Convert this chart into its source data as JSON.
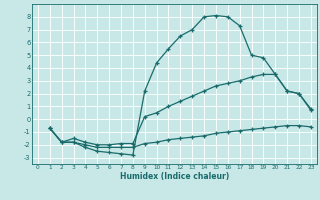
{
  "line1_x": [
    1,
    2,
    3,
    4,
    5,
    6,
    7,
    8,
    9,
    10,
    11,
    12,
    13,
    14,
    15,
    16,
    17,
    18,
    19,
    20,
    21,
    22,
    23
  ],
  "line1_y": [
    -0.7,
    -1.8,
    -1.8,
    -2.2,
    -2.5,
    -2.6,
    -2.7,
    -2.8,
    2.2,
    4.4,
    5.5,
    6.5,
    7.0,
    8.0,
    8.1,
    8.0,
    7.3,
    5.0,
    4.8,
    3.5,
    2.2,
    2.0,
    0.7
  ],
  "line2_x": [
    1,
    2,
    3,
    4,
    5,
    6,
    7,
    8,
    9,
    10,
    11,
    12,
    13,
    14,
    15,
    16,
    17,
    18,
    19,
    20,
    21,
    22,
    23
  ],
  "line2_y": [
    -0.7,
    -1.8,
    -1.5,
    -1.8,
    -2.0,
    -2.0,
    -1.9,
    -1.9,
    0.2,
    0.5,
    1.0,
    1.4,
    1.8,
    2.2,
    2.6,
    2.8,
    3.0,
    3.3,
    3.5,
    3.5,
    2.2,
    2.0,
    0.8
  ],
  "line3_x": [
    1,
    2,
    3,
    4,
    5,
    6,
    7,
    8,
    9,
    10,
    11,
    12,
    13,
    14,
    15,
    16,
    17,
    18,
    19,
    20,
    21,
    22,
    23
  ],
  "line3_y": [
    -0.7,
    -1.8,
    -1.8,
    -2.0,
    -2.2,
    -2.2,
    -2.2,
    -2.2,
    -1.9,
    -1.8,
    -1.6,
    -1.5,
    -1.4,
    -1.3,
    -1.1,
    -1.0,
    -0.9,
    -0.8,
    -0.7,
    -0.6,
    -0.5,
    -0.5,
    -0.6
  ],
  "color": "#1a6b6b",
  "bg_color": "#c8e8e8",
  "grid_color": "#b0d8d8",
  "xlabel": "Humidex (Indice chaleur)",
  "xlim": [
    -0.5,
    23.5
  ],
  "ylim": [
    -3.5,
    9.0
  ],
  "xticks": [
    0,
    1,
    2,
    3,
    4,
    5,
    6,
    7,
    8,
    9,
    10,
    11,
    12,
    13,
    14,
    15,
    16,
    17,
    18,
    19,
    20,
    21,
    22,
    23
  ],
  "yticks": [
    -3,
    -2,
    -1,
    0,
    1,
    2,
    3,
    4,
    5,
    6,
    7,
    8
  ],
  "marker": "+",
  "markersize": 3,
  "linewidth": 0.9
}
